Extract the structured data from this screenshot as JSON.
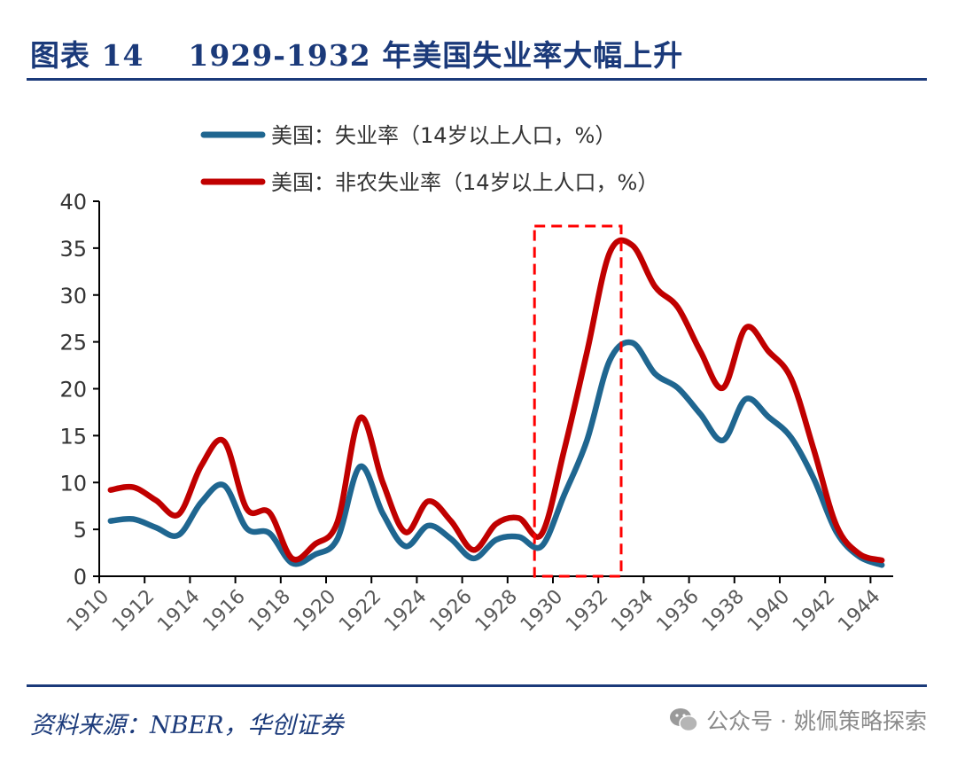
{
  "title": "图表 14    1929-1932 年美国失业率大幅上升",
  "source": "资料来源：NBER，华创证券",
  "watermark": {
    "icon": "wechat-icon",
    "text": "公众号 · 姚佩策略探索"
  },
  "chart_data": {
    "type": "line",
    "title": "",
    "xlabel": "",
    "ylabel": "",
    "ylim": [
      0,
      40
    ],
    "yticks": [
      "0",
      "5",
      "10",
      "15",
      "20",
      "25",
      "30",
      "35",
      "40"
    ],
    "xticks": [
      "1910",
      "1912",
      "1914",
      "1916",
      "1918",
      "1920",
      "1922",
      "1924",
      "1926",
      "1928",
      "1930",
      "1932",
      "1934",
      "1936",
      "1938",
      "1940",
      "1942",
      "1944"
    ],
    "x": [
      1910,
      1911,
      1912,
      1913,
      1914,
      1915,
      1916,
      1917,
      1918,
      1919,
      1920,
      1921,
      1922,
      1923,
      1924,
      1925,
      1926,
      1927,
      1928,
      1929,
      1930,
      1931,
      1932,
      1933,
      1934,
      1935,
      1936,
      1937,
      1938,
      1939,
      1940,
      1941,
      1942,
      1943,
      1944
    ],
    "grid": false,
    "legend_position": "top",
    "series": [
      {
        "name": "美国：失业率（14岁以上人口，%）",
        "color": "#1f6690",
        "values": [
          5.9,
          6.1,
          5.2,
          4.4,
          7.9,
          9.7,
          5.1,
          4.6,
          1.4,
          2.3,
          4.0,
          11.7,
          6.7,
          3.2,
          5.4,
          4.0,
          1.9,
          3.9,
          4.2,
          3.2,
          8.7,
          14.5,
          23.0,
          24.9,
          21.6,
          20.1,
          17.3,
          14.5,
          18.9,
          17.0,
          14.8,
          10.4,
          4.7,
          2.1,
          1.2
        ]
      },
      {
        "name": "美国：非农失业率（14岁以上人口，%）",
        "color": "#c00000",
        "values": [
          9.2,
          9.5,
          8.1,
          6.6,
          11.8,
          14.4,
          7.2,
          6.8,
          1.9,
          3.4,
          5.8,
          16.9,
          10.0,
          4.7,
          8.0,
          5.9,
          2.8,
          5.6,
          6.2,
          4.5,
          13.5,
          23.9,
          34.5,
          35.3,
          30.9,
          28.7,
          24.0,
          20.1,
          26.5,
          24.0,
          21.1,
          13.5,
          5.4,
          2.4,
          1.7
        ]
      }
    ],
    "highlight_box": {
      "from": 1929,
      "to": 1932,
      "color": "#ff0000",
      "style": "dashed"
    }
  }
}
